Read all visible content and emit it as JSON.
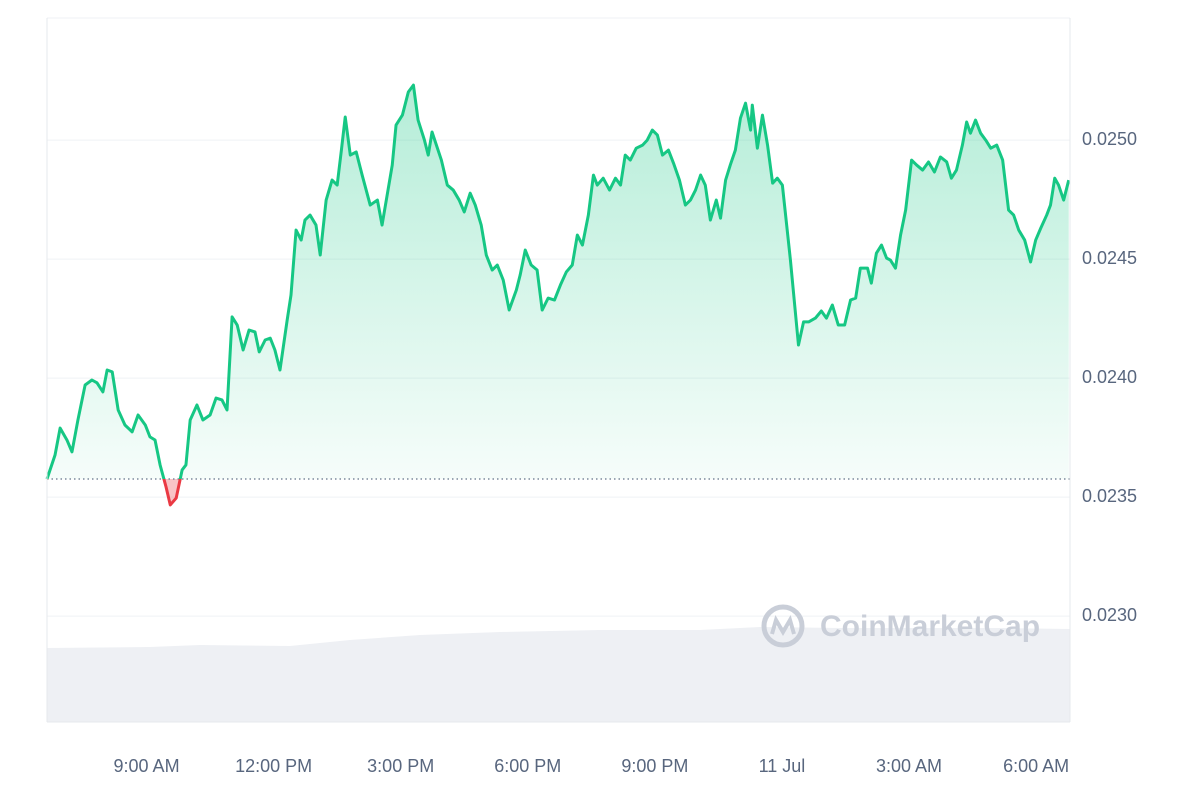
{
  "chart_data": {
    "type": "line",
    "watermark": "CoinMarketCap",
    "color": "#16c784",
    "below_color": "#ea3943",
    "baseline": 0.023576,
    "xlim": [
      6.65,
      30.8
    ],
    "xticks": [
      {
        "value": 9,
        "label": "9:00 AM"
      },
      {
        "value": 12,
        "label": "12:00 PM"
      },
      {
        "value": 15,
        "label": "3:00 PM"
      },
      {
        "value": 18,
        "label": "6:00 PM"
      },
      {
        "value": 21,
        "label": "9:00 PM"
      },
      {
        "value": 24,
        "label": "11 Jul"
      },
      {
        "value": 27,
        "label": "3:00 AM"
      },
      {
        "value": 30,
        "label": "6:00 AM"
      }
    ],
    "ylim": [
      0.022555,
      0.025513
    ],
    "yticks": [
      {
        "value": 0.023,
        "label": "0.0230"
      },
      {
        "value": 0.0235,
        "label": "0.0235"
      },
      {
        "value": 0.024,
        "label": "0.0240"
      },
      {
        "value": 0.0245,
        "label": "0.0245"
      },
      {
        "value": 0.025,
        "label": "0.0250"
      }
    ],
    "grid": true,
    "x": [
      6.65,
      6.84,
      6.96,
      7.12,
      7.24,
      7.38,
      7.55,
      7.71,
      7.83,
      7.97,
      8.07,
      8.19,
      8.33,
      8.49,
      8.66,
      8.8,
      8.97,
      9.08,
      9.2,
      9.32,
      9.46,
      9.56,
      9.7,
      9.84,
      9.93,
      10.03,
      10.19,
      10.33,
      10.5,
      10.64,
      10.78,
      10.9,
      11.02,
      11.14,
      11.28,
      11.42,
      11.56,
      11.66,
      11.8,
      11.92,
      12.03,
      12.15,
      12.32,
      12.41,
      12.53,
      12.65,
      12.74,
      12.86,
      13.0,
      13.1,
      13.24,
      13.38,
      13.5,
      13.6,
      13.69,
      13.81,
      13.95,
      14.09,
      14.28,
      14.45,
      14.56,
      14.7,
      14.8,
      14.89,
      15.04,
      15.18,
      15.3,
      15.41,
      15.56,
      15.65,
      15.74,
      15.96,
      16.1,
      16.24,
      16.38,
      16.5,
      16.64,
      16.76,
      16.9,
      17.02,
      17.16,
      17.28,
      17.42,
      17.56,
      17.73,
      17.82,
      17.94,
      18.08,
      18.22,
      18.34,
      18.48,
      18.63,
      18.77,
      18.91,
      19.05,
      19.17,
      19.29,
      19.43,
      19.55,
      19.64,
      19.78,
      19.93,
      20.07,
      20.19,
      20.3,
      20.42,
      20.56,
      20.71,
      20.82,
      20.94,
      21.06,
      21.18,
      21.32,
      21.44,
      21.58,
      21.72,
      21.84,
      21.96,
      22.08,
      22.19,
      22.31,
      22.45,
      22.55,
      22.67,
      22.78,
      22.9,
      23.02,
      23.14,
      23.26,
      23.3,
      23.42,
      23.54,
      23.66,
      23.78,
      23.89,
      24.01,
      24.2,
      24.39,
      24.51,
      24.63,
      24.79,
      24.93,
      25.05,
      25.19,
      25.33,
      25.48,
      25.62,
      25.74,
      25.85,
      26.02,
      26.11,
      26.23,
      26.35,
      26.47,
      26.56,
      26.68,
      26.8,
      26.92,
      27.06,
      27.18,
      27.32,
      27.46,
      27.6,
      27.74,
      27.89,
      28.0,
      28.12,
      28.26,
      28.36,
      28.45,
      28.57,
      28.69,
      28.81,
      28.93,
      29.07,
      29.21,
      29.35,
      29.47,
      29.59,
      29.73,
      29.87,
      29.99,
      30.11,
      30.25,
      30.34,
      30.44,
      30.53,
      30.65,
      30.77
    ],
    "values": [
      0.023576,
      0.023677,
      0.02379,
      0.02374,
      0.02369,
      0.023824,
      0.023971,
      0.023992,
      0.02398,
      0.023942,
      0.024034,
      0.024026,
      0.023866,
      0.023803,
      0.023774,
      0.023845,
      0.023803,
      0.023753,
      0.02374,
      0.023635,
      0.023543,
      0.023467,
      0.023496,
      0.023614,
      0.023635,
      0.023824,
      0.023887,
      0.023824,
      0.023845,
      0.023916,
      0.023908,
      0.023866,
      0.024257,
      0.024223,
      0.024118,
      0.024202,
      0.024194,
      0.02411,
      0.02416,
      0.024168,
      0.024118,
      0.024034,
      0.024244,
      0.024349,
      0.024622,
      0.02458,
      0.024664,
      0.024685,
      0.024643,
      0.024517,
      0.024748,
      0.024832,
      0.024811,
      0.024958,
      0.025097,
      0.024937,
      0.02495,
      0.024853,
      0.024727,
      0.024748,
      0.024643,
      0.02479,
      0.024895,
      0.025063,
      0.025105,
      0.025202,
      0.025231,
      0.025084,
      0.025,
      0.024937,
      0.025034,
      0.024916,
      0.024811,
      0.02479,
      0.024748,
      0.024698,
      0.024777,
      0.024727,
      0.024643,
      0.024517,
      0.024454,
      0.024475,
      0.024412,
      0.024286,
      0.02437,
      0.024433,
      0.024538,
      0.024475,
      0.024454,
      0.024286,
      0.024336,
      0.024328,
      0.024391,
      0.024446,
      0.024475,
      0.024601,
      0.024559,
      0.024685,
      0.024853,
      0.024811,
      0.02484,
      0.02479,
      0.02484,
      0.024811,
      0.024937,
      0.024916,
      0.024966,
      0.024979,
      0.025,
      0.025042,
      0.025021,
      0.024937,
      0.024958,
      0.024903,
      0.024832,
      0.024727,
      0.024748,
      0.02479,
      0.024853,
      0.024811,
      0.024664,
      0.024748,
      0.024672,
      0.024832,
      0.024895,
      0.024958,
      0.025092,
      0.025155,
      0.025042,
      0.025147,
      0.024966,
      0.025105,
      0.024979,
      0.024819,
      0.02484,
      0.024811,
      0.024496,
      0.024139,
      0.024236,
      0.024236,
      0.024252,
      0.024282,
      0.024252,
      0.024307,
      0.024223,
      0.024223,
      0.024328,
      0.024336,
      0.024462,
      0.024462,
      0.024399,
      0.024525,
      0.024559,
      0.024504,
      0.024496,
      0.024462,
      0.024601,
      0.024706,
      0.024916,
      0.024895,
      0.024874,
      0.024908,
      0.024866,
      0.024929,
      0.024908,
      0.02484,
      0.024874,
      0.024979,
      0.025076,
      0.025029,
      0.025084,
      0.025029,
      0.025,
      0.024966,
      0.024979,
      0.024916,
      0.024706,
      0.024685,
      0.024622,
      0.02458,
      0.024488,
      0.02458,
      0.02463,
      0.024685,
      0.024727,
      0.02484,
      0.024811,
      0.024748,
      0.024832
    ]
  }
}
